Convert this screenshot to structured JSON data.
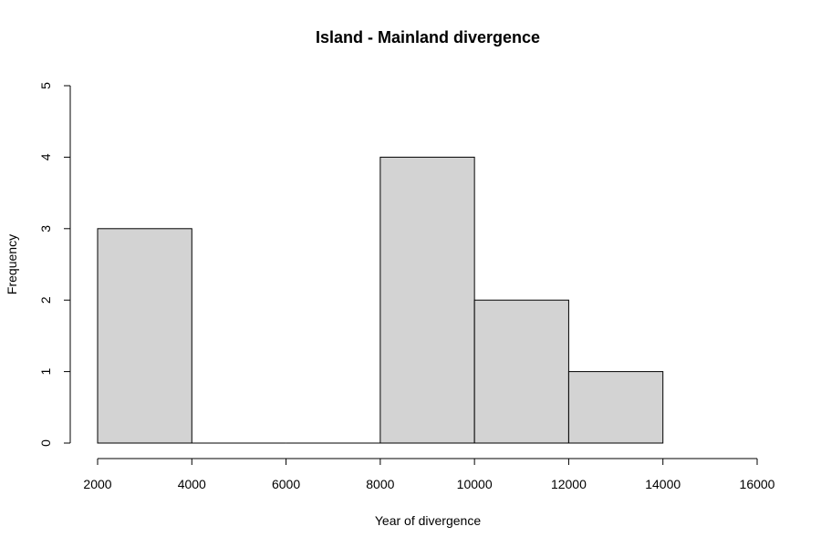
{
  "chart_data": {
    "type": "bar",
    "title": "Island - Mainland divergence",
    "xlabel": "Year of divergence",
    "ylabel": "Frequency",
    "bins": [
      {
        "from": 2000,
        "to": 4000,
        "count": 3
      },
      {
        "from": 4000,
        "to": 6000,
        "count": 0
      },
      {
        "from": 6000,
        "to": 8000,
        "count": 0
      },
      {
        "from": 8000,
        "to": 10000,
        "count": 4
      },
      {
        "from": 10000,
        "to": 12000,
        "count": 2
      },
      {
        "from": 12000,
        "to": 14000,
        "count": 1
      }
    ],
    "xlim": [
      2000,
      16000
    ],
    "ylim": [
      0,
      5
    ],
    "x_ticks": [
      "2000",
      "4000",
      "6000",
      "8000",
      "10000",
      "12000",
      "14000",
      "16000"
    ],
    "y_ticks": [
      "0",
      "1",
      "2",
      "3",
      "4",
      "5"
    ],
    "grid": false,
    "colors": {
      "bar_fill": "#d3d3d3",
      "bar_stroke": "#000000"
    }
  }
}
